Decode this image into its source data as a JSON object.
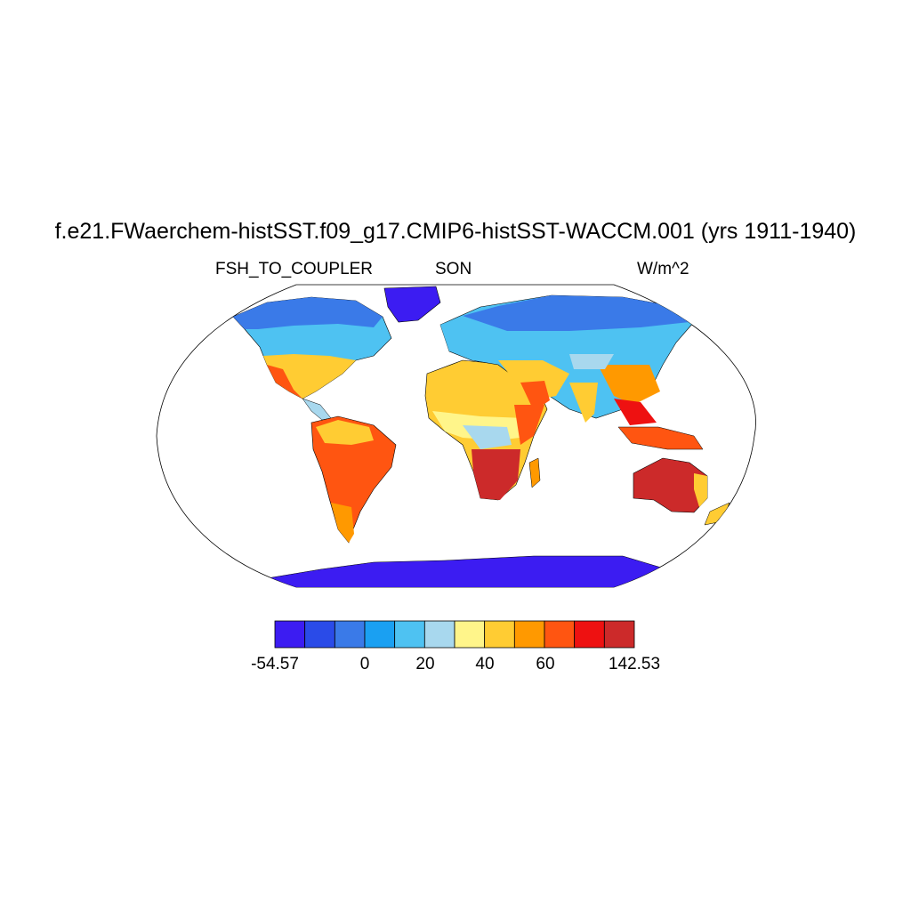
{
  "title": "f.e21.FWaerchem-histSST.f09_g17.CMIP6-histSST-WACCM.001 (yrs 1911-1940)",
  "subtitles": {
    "variable": "FSH_TO_COUPLER",
    "season": "SON",
    "units": "W/m^2"
  },
  "colorbar": {
    "colors": [
      "#3c1cf2",
      "#2a4be8",
      "#3a7ae8",
      "#1aa0f2",
      "#4ec2f2",
      "#a8d8ee",
      "#fff58a",
      "#ffcc33",
      "#ff9900",
      "#ff5511",
      "#ee1111",
      "#cc2a2a"
    ],
    "labels": [
      "-54.57",
      "0",
      "20",
      "40",
      "60",
      "142.53"
    ]
  },
  "map": {
    "projection": "Robinson",
    "ocean_color": "#ffffff",
    "regions": [
      {
        "name": "North America",
        "color": "#4ec2f2"
      },
      {
        "name": "Greenland",
        "color": "#3c1cf2"
      },
      {
        "name": "South America",
        "color": "#ff5511"
      },
      {
        "name": "Africa",
        "color": "#ffcc33"
      },
      {
        "name": "Southern Africa",
        "color": "#cc2a2a"
      },
      {
        "name": "Eurasia",
        "color": "#4ec2f2"
      },
      {
        "name": "Siberia",
        "color": "#3a7ae8"
      },
      {
        "name": "Australia",
        "color": "#cc2a2a"
      },
      {
        "name": "Antarctica",
        "color": "#3c1cf2"
      }
    ]
  }
}
